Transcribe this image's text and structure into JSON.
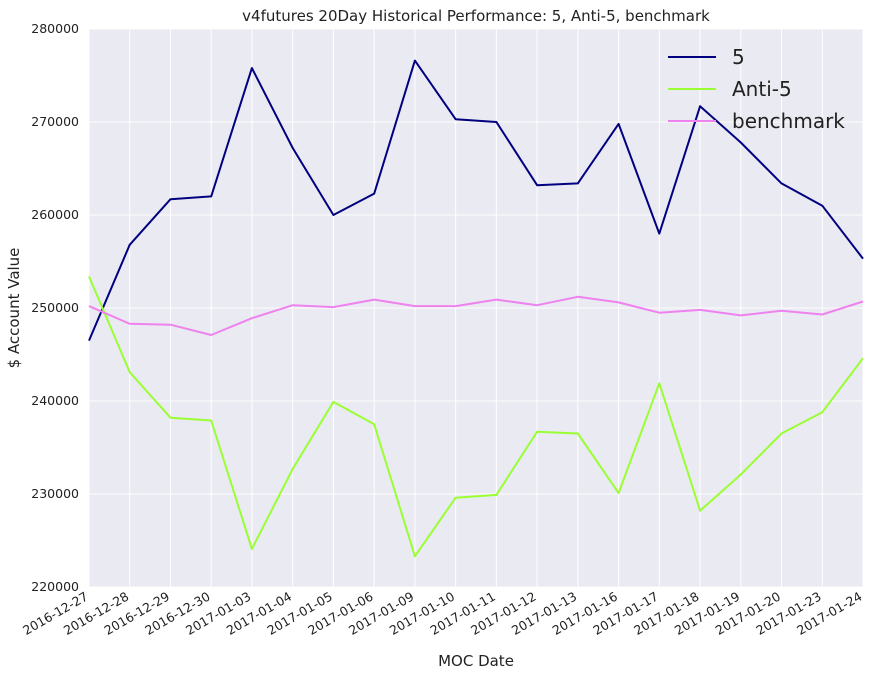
{
  "chart_data": {
    "type": "line",
    "title": "v4futures 20Day Historical Performance: 5, Anti-5, benchmark",
    "xlabel": "MOC Date",
    "ylabel": "$ Account Value",
    "ylim": [
      220000,
      280000
    ],
    "yticks": [
      220000,
      230000,
      240000,
      250000,
      260000,
      270000,
      280000
    ],
    "grid": true,
    "legend_position": "top-right",
    "x": [
      "2016-12-27",
      "2016-12-28",
      "2016-12-29",
      "2016-12-30",
      "2017-01-03",
      "2017-01-04",
      "2017-01-05",
      "2017-01-06",
      "2017-01-09",
      "2017-01-10",
      "2017-01-11",
      "2017-01-12",
      "2017-01-13",
      "2017-01-16",
      "2017-01-17",
      "2017-01-18",
      "2017-01-19",
      "2017-01-20",
      "2017-01-23",
      "2017-01-24"
    ],
    "series": [
      {
        "name": "5",
        "color": "#000080",
        "values": [
          246500,
          256800,
          261700,
          262000,
          275800,
          267200,
          260000,
          262300,
          276600,
          270300,
          270000,
          263200,
          263400,
          269800,
          258000,
          271700,
          267800,
          263400,
          261000,
          255300
        ]
      },
      {
        "name": "Anti-5",
        "color": "#9aff32",
        "values": [
          253400,
          243100,
          238200,
          237900,
          224100,
          232700,
          239900,
          237500,
          223300,
          229600,
          229900,
          236700,
          236500,
          230100,
          241900,
          228200,
          232100,
          236500,
          238800,
          244600
        ]
      },
      {
        "name": "benchmark",
        "color": "#ee82ee",
        "values": [
          250200,
          248300,
          248200,
          247100,
          248900,
          250300,
          250100,
          250900,
          250200,
          250200,
          250900,
          250300,
          251200,
          250600,
          249500,
          249800,
          249200,
          249700,
          249300,
          250700
        ]
      }
    ]
  },
  "colors": {
    "plot_background": "#eaeaf2",
    "grid": "#ffffff"
  }
}
